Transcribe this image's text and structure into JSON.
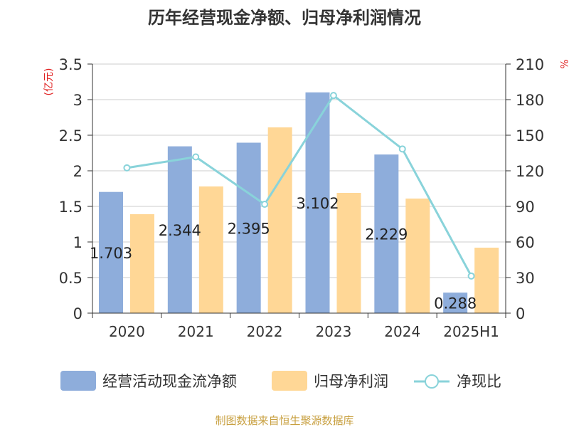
{
  "chart_data": {
    "type": "bar",
    "title": "历年经营现金净额、归母净利润情况",
    "left_unit": "(亿元)",
    "right_unit": "%",
    "categories": [
      "2020",
      "2021",
      "2022",
      "2023",
      "2024",
      "2025H1"
    ],
    "series": [
      {
        "name": "经营活动现金流净额",
        "type": "bar",
        "axis": "left",
        "values": [
          1.703,
          2.344,
          2.395,
          3.102,
          2.229,
          0.288
        ],
        "labels": [
          "1.703",
          "2.344",
          "2.395",
          "3.102",
          "2.229",
          "0.288"
        ]
      },
      {
        "name": "归母净利润",
        "type": "bar",
        "axis": "left",
        "values": [
          1.39,
          1.78,
          2.61,
          1.69,
          1.61,
          0.92
        ]
      },
      {
        "name": "净现比",
        "type": "line",
        "axis": "right",
        "values": [
          122.5,
          131.7,
          91.8,
          183.5,
          138.4,
          31.3
        ]
      }
    ],
    "left_axis": {
      "min": 0,
      "max": 3.5,
      "ticks": [
        "0",
        "0.5",
        "1",
        "1.5",
        "2",
        "2.5",
        "3",
        "3.5"
      ]
    },
    "right_axis": {
      "min": 0,
      "max": 210,
      "ticks": [
        "0",
        "30",
        "60",
        "90",
        "120",
        "150",
        "180",
        "210"
      ]
    },
    "grid": true,
    "legend_position": "bottom",
    "colors": {
      "cash_flow": "#8EADDB",
      "net_profit": "#FFD796",
      "ratio": "#89D3DA",
      "unit": "#E02020",
      "source": "#C8A040",
      "grid": "#CCCCCC",
      "axis": "#333333"
    }
  },
  "source_text": "制图数据来自恒生聚源数据库"
}
